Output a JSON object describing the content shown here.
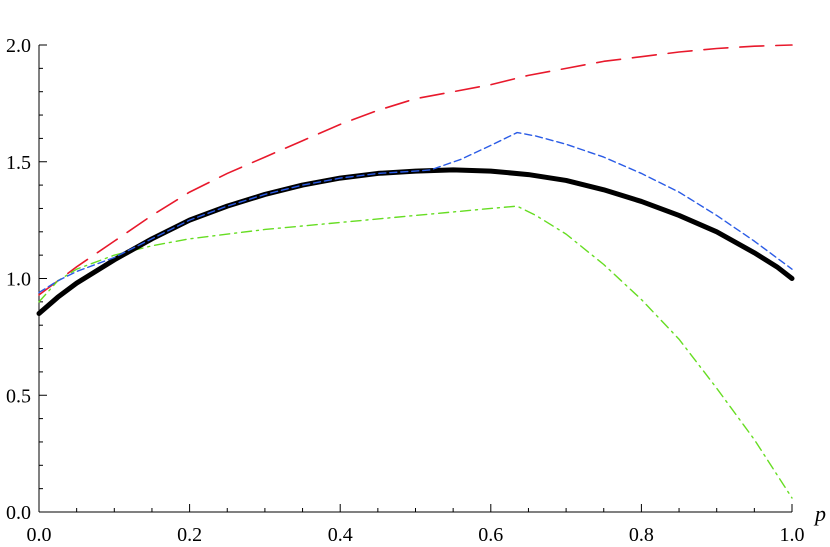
{
  "chart_data": {
    "type": "line",
    "title": "",
    "xlabel": "p",
    "ylabel": "",
    "xlim": [
      0,
      1
    ],
    "ylim": [
      0,
      2
    ],
    "grid": false,
    "legend": "none",
    "x_ticks": [
      {
        "value": 0.0,
        "label": "0.0"
      },
      {
        "value": 0.2,
        "label": "0.2"
      },
      {
        "value": 0.4,
        "label": "0.4"
      },
      {
        "value": 0.6,
        "label": "0.6"
      },
      {
        "value": 0.8,
        "label": "0.8"
      },
      {
        "value": 1.0,
        "label": "1.0"
      }
    ],
    "y_ticks": [
      {
        "value": 0.0,
        "label": "0.0"
      },
      {
        "value": 0.5,
        "label": "0.5"
      },
      {
        "value": 1.0,
        "label": "1.0"
      },
      {
        "value": 1.5,
        "label": "1.5"
      },
      {
        "value": 2.0,
        "label": "2.0"
      }
    ],
    "series": [
      {
        "style": "solid-thick",
        "color": "#000000",
        "x": [
          0.0,
          0.025,
          0.05,
          0.1,
          0.15,
          0.2,
          0.25,
          0.3,
          0.35,
          0.4,
          0.45,
          0.5,
          0.55,
          0.6,
          0.65,
          0.7,
          0.75,
          0.8,
          0.85,
          0.9,
          0.95,
          0.98,
          1.0
        ],
        "y": [
          0.85,
          0.92,
          0.98,
          1.08,
          1.17,
          1.25,
          1.31,
          1.36,
          1.4,
          1.43,
          1.45,
          1.46,
          1.465,
          1.46,
          1.445,
          1.42,
          1.38,
          1.33,
          1.27,
          1.2,
          1.11,
          1.05,
          1.0
        ]
      },
      {
        "style": "long-dash",
        "color": "#e8192c",
        "x": [
          0.0,
          0.025,
          0.05,
          0.1,
          0.15,
          0.2,
          0.25,
          0.3,
          0.35,
          0.4,
          0.45,
          0.5,
          0.55,
          0.6,
          0.65,
          0.7,
          0.75,
          0.8,
          0.85,
          0.9,
          0.95,
          1.0
        ],
        "y": [
          0.93,
          0.99,
          1.05,
          1.16,
          1.27,
          1.37,
          1.45,
          1.52,
          1.59,
          1.66,
          1.72,
          1.77,
          1.8,
          1.83,
          1.87,
          1.9,
          1.93,
          1.95,
          1.97,
          1.985,
          1.995,
          2.0
        ]
      },
      {
        "style": "short-dash",
        "color": "#2b5ce6",
        "x": [
          0.0,
          0.025,
          0.05,
          0.1,
          0.15,
          0.2,
          0.25,
          0.3,
          0.35,
          0.4,
          0.45,
          0.5,
          0.52,
          0.56,
          0.6,
          0.635,
          0.66,
          0.7,
          0.75,
          0.8,
          0.85,
          0.9,
          0.95,
          1.0
        ],
        "y": [
          0.94,
          0.99,
          1.03,
          1.09,
          1.17,
          1.25,
          1.31,
          1.36,
          1.4,
          1.43,
          1.45,
          1.46,
          1.465,
          1.51,
          1.57,
          1.625,
          1.61,
          1.575,
          1.52,
          1.45,
          1.37,
          1.27,
          1.16,
          1.04
        ]
      },
      {
        "style": "dash-dot",
        "color": "#66dd22",
        "x": [
          0.0,
          0.025,
          0.05,
          0.1,
          0.15,
          0.2,
          0.3,
          0.4,
          0.5,
          0.55,
          0.6,
          0.635,
          0.66,
          0.7,
          0.75,
          0.8,
          0.85,
          0.9,
          0.95,
          1.0
        ],
        "y": [
          0.9,
          0.99,
          1.04,
          1.1,
          1.14,
          1.17,
          1.21,
          1.24,
          1.27,
          1.285,
          1.3,
          1.31,
          1.27,
          1.19,
          1.06,
          0.91,
          0.74,
          0.53,
          0.31,
          0.06
        ]
      }
    ]
  }
}
